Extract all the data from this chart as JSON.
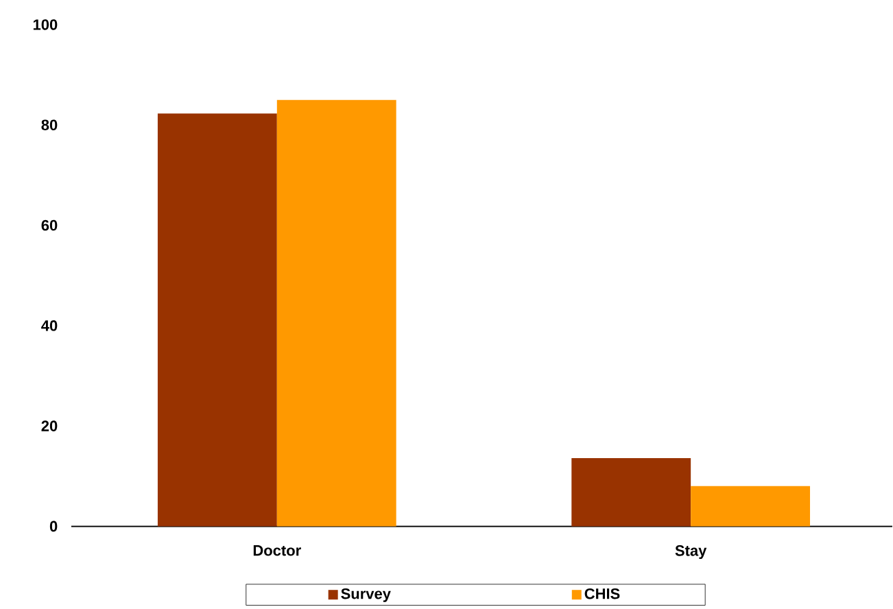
{
  "chart_data": {
    "type": "bar",
    "categories": [
      "Doctor",
      "Stay"
    ],
    "series": [
      {
        "name": "Survey",
        "color": "#993300",
        "values": [
          82.3,
          13.6
        ]
      },
      {
        "name": "CHIS",
        "color": "#ff9900",
        "values": [
          85.0,
          8.0
        ]
      }
    ],
    "ylim": [
      0,
      100
    ],
    "yticks": [
      0,
      20,
      40,
      60,
      80,
      100
    ],
    "grid": false,
    "legend": "bottom"
  }
}
